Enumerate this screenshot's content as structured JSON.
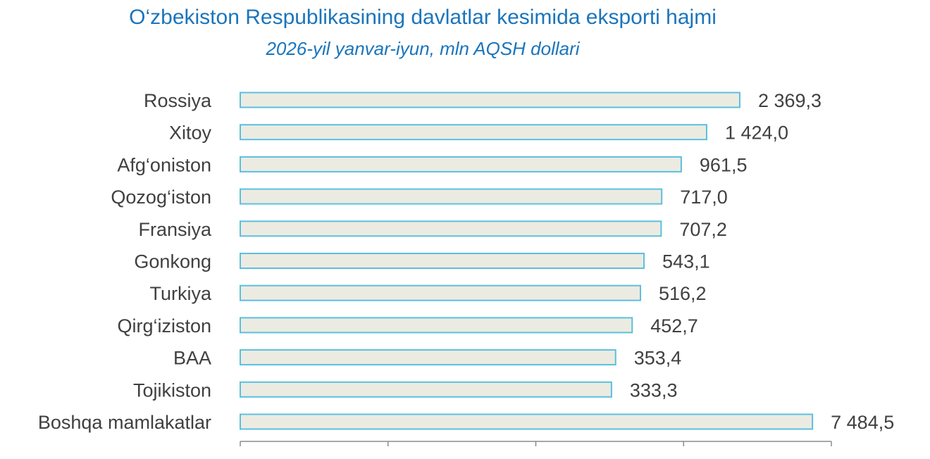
{
  "chart_data": {
    "type": "bar",
    "orientation": "horizontal",
    "title": "O‘zbekiston Respublikasining davlatlar kesimida eksporti hajmi",
    "subtitle": "2026-yil yanvar-iyun, mln AQSH dollari",
    "categories": [
      "Rossiya",
      "Xitoy",
      "Afg‘oniston",
      "Qozog‘iston",
      "Fransiya",
      "Gonkong",
      "Turkiya",
      "Qirg‘iziston",
      "BAA",
      "Tojikiston",
      "Boshqa mamlakatlar"
    ],
    "values": [
      2369.3,
      1424.0,
      961.5,
      717.0,
      707.2,
      543.1,
      516.2,
      452.7,
      353.4,
      333.3,
      7484.5
    ],
    "value_labels": [
      "2 369,3",
      "1 424,0",
      "961,5",
      "717,0",
      "707,2",
      "543,1",
      "516,2",
      "452,7",
      "353,4",
      "333,3",
      "7 484,5"
    ],
    "bar_lengths_relative": [
      0.845,
      0.789,
      0.746,
      0.713,
      0.712,
      0.683,
      0.677,
      0.663,
      0.635,
      0.628,
      0.968
    ],
    "bar_fill_color": "#ecebe2",
    "bar_border_color": "#5bc0de",
    "text_color": "#404040",
    "title_color": "#1b75bb",
    "grid": false,
    "legend": "none"
  }
}
